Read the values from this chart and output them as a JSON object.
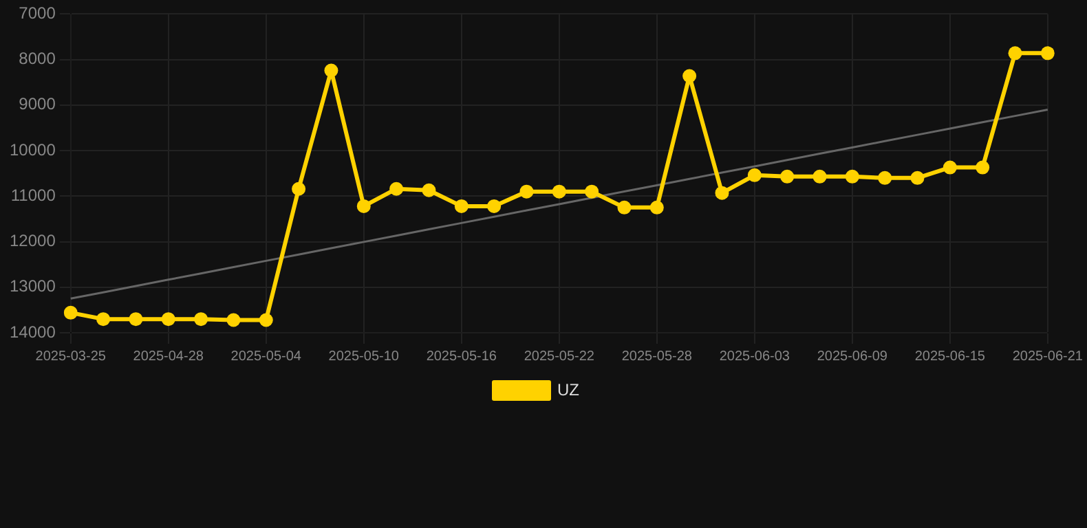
{
  "chart_data": {
    "type": "line",
    "categories": [
      "2025-03-25",
      null,
      null,
      "2025-04-28",
      null,
      null,
      "2025-05-04",
      null,
      null,
      "2025-05-10",
      null,
      null,
      "2025-05-16",
      null,
      null,
      "2025-05-22",
      null,
      null,
      "2025-05-28",
      null,
      null,
      "2025-06-03",
      null,
      null,
      "2025-06-09",
      null,
      null,
      "2025-06-15",
      null,
      null,
      "2025-06-21"
    ],
    "series": [
      {
        "name": "UZ",
        "color": "#ffd200",
        "marker": "circle",
        "values": [
          13560,
          13700,
          13700,
          13700,
          13700,
          13720,
          13720,
          10840,
          8240,
          11220,
          10840,
          10870,
          11220,
          11220,
          10900,
          10900,
          10900,
          11250,
          11250,
          8360,
          10930,
          10540,
          10570,
          10570,
          10570,
          10600,
          10600,
          10370,
          10370,
          7860,
          7860
        ]
      },
      {
        "type": "line",
        "color": "#666666",
        "marker": "none",
        "values": [
          13250,
          13112,
          12973,
          12835,
          12697,
          12558,
          12420,
          12282,
          12143,
          12005,
          11867,
          11728,
          11590,
          11452,
          11313,
          11175,
          11037,
          10898,
          10760,
          10622,
          10483,
          10345,
          10207,
          10068,
          9930,
          9792,
          9653,
          9515,
          9377,
          9238,
          9100
        ]
      }
    ],
    "ylim": [
      14000,
      7000
    ],
    "yticks": [
      7000,
      8000,
      9000,
      10000,
      11000,
      12000,
      13000,
      14000
    ],
    "grid": true,
    "legend": "bottom",
    "line_style": "solid"
  }
}
